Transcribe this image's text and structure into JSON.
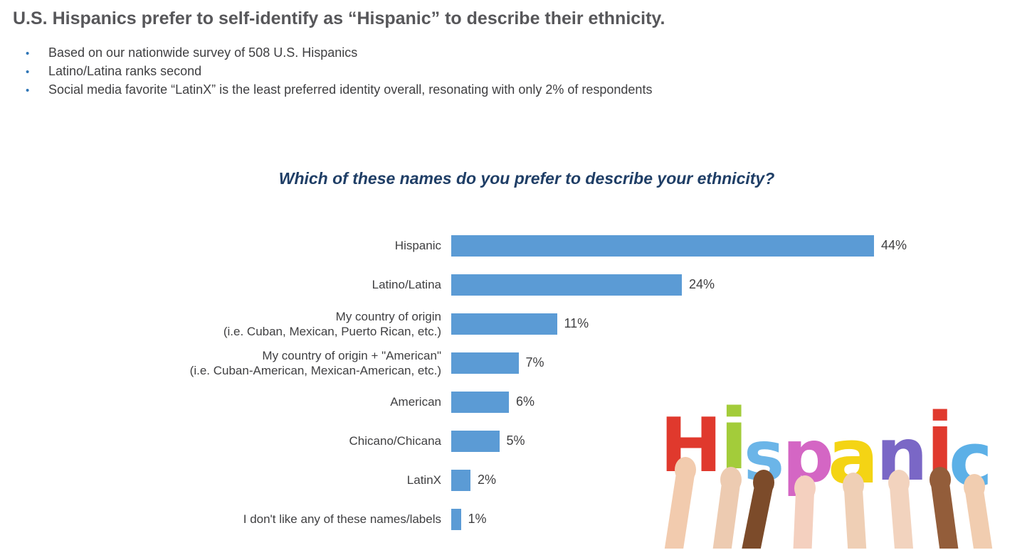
{
  "header": {
    "title": "U.S. Hispanics prefer to self-identify as “Hispanic” to describe their ethnicity.",
    "bullets": [
      "Based on our nationwide survey of 508 U.S. Hispanics",
      "Latino/Latina ranks second",
      "Social media favorite “LatinX” is the least preferred identity overall, resonating with only 2% of respondents"
    ]
  },
  "chart_data": {
    "type": "bar",
    "orientation": "horizontal",
    "title": "Which of these names do you prefer to describe your ethnicity?",
    "categories": [
      "Hispanic",
      "Latino/Latina",
      "My country of origin (i.e. Cuban, Mexican, Puerto Rican, etc.)",
      "My country of origin + \"American\" (i.e. Cuban-American, Mexican-American, etc.)",
      "American",
      "Chicano/Chicana",
      "LatinX",
      "I don't like any of these names/labels"
    ],
    "category_lines": [
      [
        "Hispanic"
      ],
      [
        "Latino/Latina"
      ],
      [
        "My country of origin",
        "(i.e. Cuban, Mexican, Puerto Rican, etc.)"
      ],
      [
        "My country of origin + \"American\"",
        "(i.e. Cuban-American, Mexican-American, etc.)"
      ],
      [
        "American"
      ],
      [
        "Chicano/Chicana"
      ],
      [
        "LatinX"
      ],
      [
        "I don't like any of these names/labels"
      ]
    ],
    "values": [
      44,
      24,
      11,
      7,
      6,
      5,
      2,
      1
    ],
    "data_labels": [
      "44%",
      "24%",
      "11%",
      "7%",
      "6%",
      "5%",
      "2%",
      "1%"
    ],
    "unit": "%",
    "xlim": [
      0,
      44
    ],
    "gridlines": false,
    "legend": false,
    "axes_visible": false,
    "bar_color": "#5b9bd5"
  },
  "photo": {
    "word": "Hispanic",
    "letters": [
      {
        "char": "H",
        "color": "#e0392d"
      },
      {
        "char": "i",
        "color": "#a3cc3a"
      },
      {
        "char": "s",
        "color": "#6bb5e8"
      },
      {
        "char": "p",
        "color": "#d466c4"
      },
      {
        "char": "a",
        "color": "#f4d414"
      },
      {
        "char": "n",
        "color": "#7a67c6"
      },
      {
        "char": "i",
        "color": "#e0392d"
      },
      {
        "char": "c",
        "color": "#5cb0e7"
      }
    ],
    "skin_tones": [
      "#f2cbae",
      "#edcbb1",
      "#7c4b2a",
      "#f4d0bf",
      "#efcfb5",
      "#f2d3be",
      "#935d3a",
      "#f1cdb0"
    ]
  },
  "colors": {
    "title_text": "#57575a",
    "body_text": "#3f3f41",
    "bullet_dot": "#2e75b6",
    "chart_title": "#1f3e66",
    "bar": "#5b9bd5",
    "background": "#ffffff"
  }
}
